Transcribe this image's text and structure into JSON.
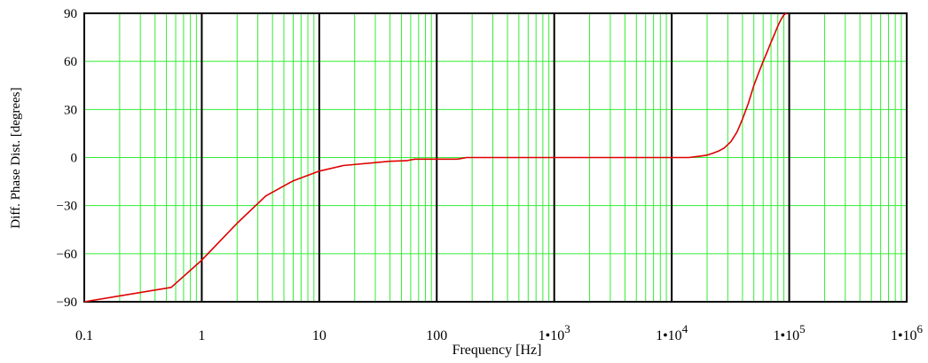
{
  "chart_data": {
    "type": "line",
    "xscale": "log",
    "xlim": [
      0.1,
      1000000
    ],
    "ylim": [
      -90,
      90
    ],
    "xlabel": "Frequency  [Hz]",
    "ylabel": "Diff. Phase Dist.  [degrees]",
    "grid": true,
    "grid_color": "#33ee33",
    "line_color": "#e00000",
    "frame_color": "#000000",
    "yticks": [
      {
        "value": 90,
        "label": "90"
      },
      {
        "value": 60,
        "label": "60"
      },
      {
        "value": 30,
        "label": "30"
      },
      {
        "value": 0,
        "label": "0"
      },
      {
        "value": -30,
        "label": "−30"
      },
      {
        "value": -60,
        "label": "−60"
      },
      {
        "value": -90,
        "label": "−90"
      }
    ],
    "xticks": [
      {
        "value": 0.1,
        "base": "0.1",
        "exp": ""
      },
      {
        "value": 1,
        "base": "1",
        "exp": ""
      },
      {
        "value": 10,
        "base": "10",
        "exp": ""
      },
      {
        "value": 100,
        "base": "100",
        "exp": ""
      },
      {
        "value": 1000,
        "base": "1•10",
        "exp": "3"
      },
      {
        "value": 10000,
        "base": "1•10",
        "exp": "4"
      },
      {
        "value": 100000,
        "base": "1•10",
        "exp": "5"
      },
      {
        "value": 1000000,
        "base": "1•10",
        "exp": "6"
      }
    ],
    "series": [
      {
        "x": [
          0.1,
          0.55,
          1,
          2,
          3.5,
          6,
          10,
          16,
          40,
          55,
          65,
          100,
          150,
          180,
          300,
          1000,
          5000,
          10000,
          14000,
          16000,
          18000,
          20000,
          22000,
          25000,
          28000,
          32000,
          36000,
          40000,
          45000,
          50000,
          55000,
          60000,
          65000,
          70000,
          75000,
          80000,
          85000,
          90000,
          95000
        ],
        "y": [
          -90,
          -81,
          -64,
          -41,
          -24,
          -14.5,
          -8.5,
          -5,
          -2.3,
          -2,
          -1,
          -1,
          -1,
          0,
          0,
          0,
          0,
          0,
          0,
          0.5,
          1,
          1.5,
          2.5,
          4,
          6,
          10,
          16,
          24,
          34,
          45,
          53,
          60,
          66,
          72,
          77,
          82,
          86,
          89,
          90
        ]
      }
    ]
  }
}
